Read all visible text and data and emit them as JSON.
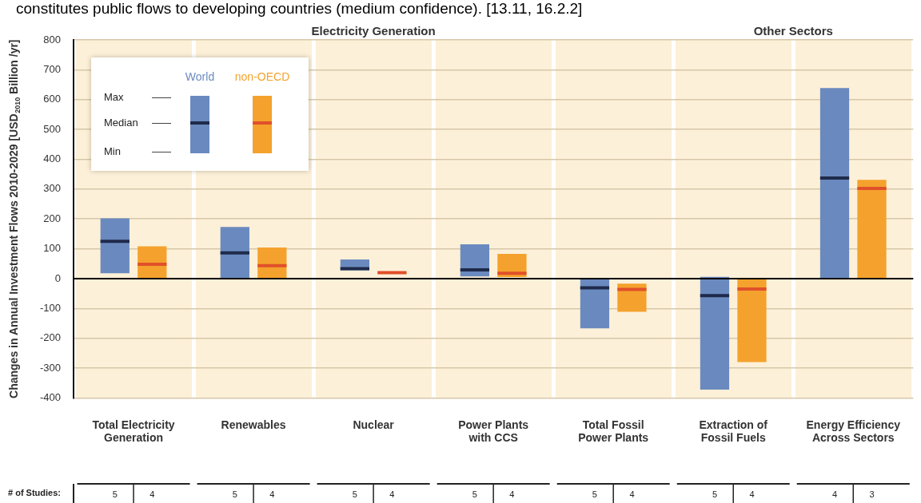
{
  "chart_data": {
    "type": "box",
    "ylabel": "Changes in Annual Investment Flows 2010-2029 [USD$_{2010}$ Billion /yr]",
    "categories": [
      "Total Electricity Generation",
      "Renewables",
      "Nuclear",
      "Power Plants with CCS",
      "Total Fossil Power Plants",
      "Extraction of Fossil Fuels",
      "Energy Efficiency Across Sectors"
    ],
    "series": [
      {
        "name": "World",
        "color": "#6a8abf",
        "boxes": [
          {
            "low": 18,
            "q1": 18,
            "median": 125,
            "q3": 202,
            "high": 202
          },
          {
            "low": 0,
            "q1": 0,
            "median": 86,
            "q3": 173,
            "high": 173
          },
          {
            "low": 28,
            "q1": 28,
            "median": 33,
            "q3": 64,
            "high": 64
          },
          {
            "low": 7,
            "q1": 7,
            "median": 29,
            "q3": 115,
            "high": 115
          },
          {
            "low": -167,
            "q1": -167,
            "median": -31,
            "q3": 0,
            "high": 0
          },
          {
            "low": -372,
            "q1": -372,
            "median": -57,
            "q3": 6,
            "high": 6
          },
          {
            "low": 0,
            "q1": 0,
            "median": 337,
            "q3": 639,
            "high": 639
          }
        ]
      },
      {
        "name": "non-OECD",
        "color": "#f4a22d",
        "boxes": [
          {
            "low": 0,
            "q1": 0,
            "median": 48,
            "q3": 108,
            "high": 108
          },
          {
            "low": 0,
            "q1": 0,
            "median": 43,
            "q3": 104,
            "high": 104
          },
          {
            "low": 20,
            "q1": 20,
            "median": 20,
            "q3": 20,
            "high": 20
          },
          {
            "low": 5,
            "q1": 5,
            "median": 18,
            "q3": 83,
            "high": 83
          },
          {
            "low": -111,
            "q1": -111,
            "median": -36,
            "q3": -17,
            "high": -17
          },
          {
            "low": -280,
            "q1": -280,
            "median": -35,
            "q3": 0,
            "high": 0
          },
          {
            "low": 0,
            "q1": 0,
            "median": 302,
            "q3": 331,
            "high": 331
          }
        ]
      }
    ],
    "ylim": [
      -400,
      800
    ],
    "yticks": [
      -400,
      -300,
      -200,
      -100,
      0,
      100,
      200,
      300,
      400,
      500,
      600,
      700,
      800
    ],
    "grid": true,
    "legend": "top left",
    "ref_lines": [
      {
        "axis": "y",
        "value": 0,
        "color": "#000000"
      }
    ],
    "annotations": [
      "constitutes public flows to developing countries (medium confidence). [13.11, 16.2.2]",
      "Electricity Generation",
      "Other Sectors",
      "Max",
      "Median",
      "Min",
      "# of Studies:",
      "5",
      "4",
      "5",
      "4",
      "5",
      "4",
      "5",
      "4",
      "5",
      "4",
      "5",
      "4",
      "4",
      "3"
    ]
  }
}
